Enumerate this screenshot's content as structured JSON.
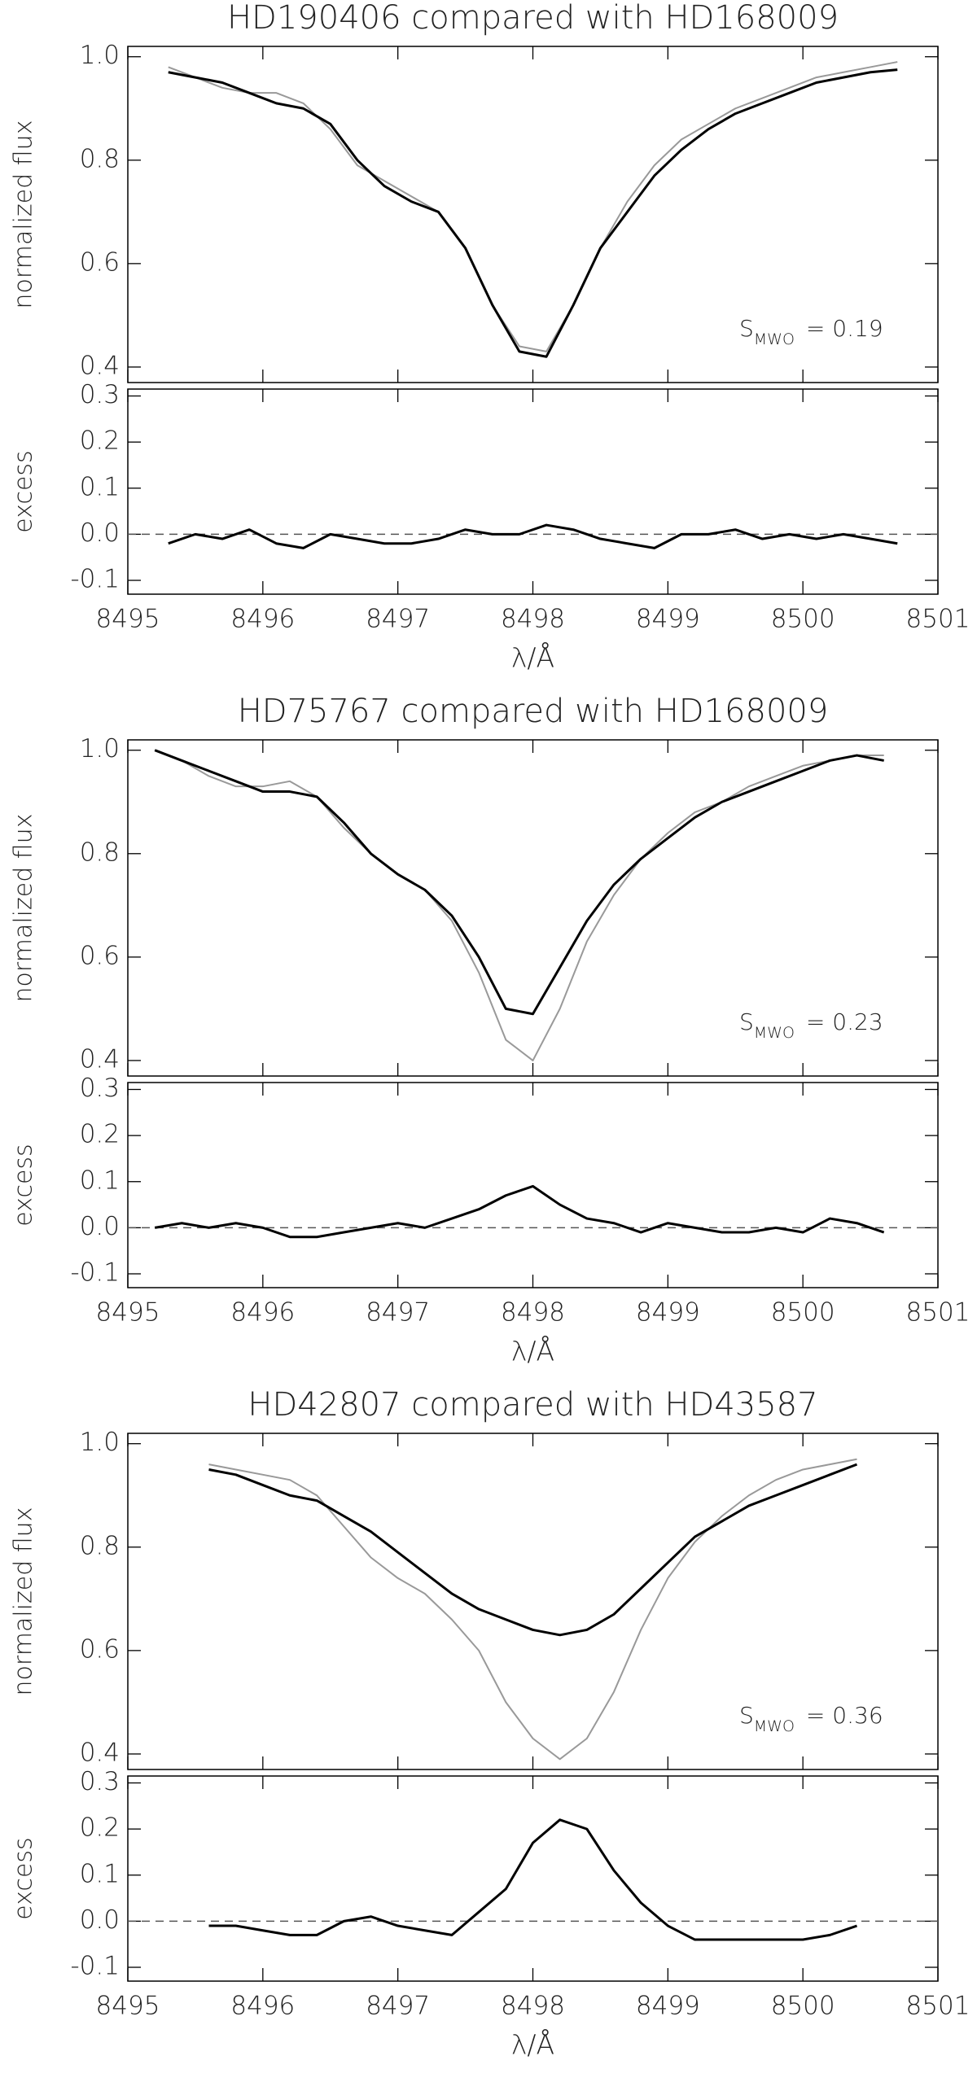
{
  "chart_data": [
    {
      "type": "line",
      "title": "HD190406 compared with HD168009",
      "ylabel": "normalized flux",
      "annotation": {
        "symbol": "S",
        "subscript": "MWO",
        "text": "= 0.19"
      },
      "x": [
        8495.3,
        8495.5,
        8495.7,
        8495.9,
        8496.1,
        8496.3,
        8496.5,
        8496.7,
        8496.9,
        8497.1,
        8497.3,
        8497.5,
        8497.7,
        8497.9,
        8498.1,
        8498.3,
        8498.5,
        8498.7,
        8498.9,
        8499.1,
        8499.3,
        8499.5,
        8499.7,
        8499.9,
        8500.1,
        8500.3,
        8500.5,
        8500.7
      ],
      "series": [
        {
          "color": "#000000",
          "values": [
            0.97,
            0.96,
            0.95,
            0.93,
            0.91,
            0.9,
            0.87,
            0.8,
            0.75,
            0.72,
            0.7,
            0.63,
            0.52,
            0.43,
            0.42,
            0.52,
            0.63,
            0.7,
            0.77,
            0.82,
            0.86,
            0.89,
            0.91,
            0.93,
            0.95,
            0.96,
            0.97,
            0.975
          ]
        },
        {
          "color": "#999999",
          "values": [
            0.98,
            0.96,
            0.94,
            0.93,
            0.93,
            0.91,
            0.86,
            0.79,
            0.76,
            0.73,
            0.7,
            0.63,
            0.52,
            0.44,
            0.43,
            0.52,
            0.63,
            0.72,
            0.79,
            0.84,
            0.87,
            0.9,
            0.92,
            0.94,
            0.96,
            0.97,
            0.98,
            0.99
          ]
        }
      ],
      "xlim": [
        8495,
        8501
      ],
      "xticks": [
        8495,
        8496,
        8497,
        8498,
        8499,
        8500,
        8501
      ],
      "ylim": [
        0.37,
        1.02
      ],
      "yticks": [
        0.4,
        0.6,
        0.8,
        {
          "value": 1,
          "label": "1.0"
        }
      ]
    },
    {
      "type": "line",
      "ylabel": "excess",
      "xlabel": "λ/Å",
      "hline": 0,
      "x": [
        8495.3,
        8495.5,
        8495.7,
        8495.9,
        8496.1,
        8496.3,
        8496.5,
        8496.7,
        8496.9,
        8497.1,
        8497.3,
        8497.5,
        8497.7,
        8497.9,
        8498.1,
        8498.3,
        8498.5,
        8498.7,
        8498.9,
        8499.1,
        8499.3,
        8499.5,
        8499.7,
        8499.9,
        8500.1,
        8500.3,
        8500.5,
        8500.7
      ],
      "series": [
        {
          "color": "#000000",
          "values": [
            -0.02,
            0.0,
            -0.01,
            0.01,
            -0.02,
            -0.03,
            0.0,
            -0.01,
            -0.02,
            -0.02,
            -0.01,
            0.01,
            0.0,
            0.0,
            0.02,
            0.01,
            -0.01,
            -0.02,
            -0.03,
            0.0,
            0.0,
            0.01,
            -0.01,
            0.0,
            -0.01,
            0.0,
            -0.01,
            -0.02
          ]
        }
      ],
      "xlim": [
        8495,
        8501
      ],
      "xticks": [
        8495,
        8496,
        8497,
        8498,
        8499,
        8500,
        8501
      ],
      "ylim": [
        -0.13,
        0.315
      ],
      "yticks": [
        -0.1,
        {
          "value": 0,
          "label": "0.0"
        },
        0.1,
        0.2,
        0.3
      ]
    },
    {
      "type": "line",
      "title": "HD75767 compared with HD168009",
      "ylabel": "normalized flux",
      "annotation": {
        "symbol": "S",
        "subscript": "MWO",
        "text": "= 0.23"
      },
      "x": [
        8495.2,
        8495.4,
        8495.6,
        8495.8,
        8496.0,
        8496.2,
        8496.4,
        8496.6,
        8496.8,
        8497.0,
        8497.2,
        8497.4,
        8497.6,
        8497.8,
        8498.0,
        8498.2,
        8498.4,
        8498.6,
        8498.8,
        8499.0,
        8499.2,
        8499.4,
        8499.6,
        8499.8,
        8500.0,
        8500.2,
        8500.4,
        8500.6
      ],
      "series": [
        {
          "color": "#000000",
          "values": [
            1.0,
            0.98,
            0.96,
            0.94,
            0.92,
            0.92,
            0.91,
            0.86,
            0.8,
            0.76,
            0.73,
            0.68,
            0.6,
            0.5,
            0.49,
            0.58,
            0.67,
            0.74,
            0.79,
            0.83,
            0.87,
            0.9,
            0.92,
            0.94,
            0.96,
            0.98,
            0.99,
            0.98
          ]
        },
        {
          "color": "#999999",
          "values": [
            1.0,
            0.98,
            0.95,
            0.93,
            0.93,
            0.94,
            0.91,
            0.85,
            0.8,
            0.76,
            0.73,
            0.67,
            0.57,
            0.44,
            0.4,
            0.5,
            0.63,
            0.72,
            0.79,
            0.84,
            0.88,
            0.9,
            0.93,
            0.95,
            0.97,
            0.98,
            0.99,
            0.99
          ]
        }
      ],
      "xlim": [
        8495,
        8501
      ],
      "xticks": [
        8495,
        8496,
        8497,
        8498,
        8499,
        8500,
        8501
      ],
      "ylim": [
        0.37,
        1.02
      ],
      "yticks": [
        0.4,
        0.6,
        0.8,
        {
          "value": 1,
          "label": "1.0"
        }
      ]
    },
    {
      "type": "line",
      "ylabel": "excess",
      "xlabel": "λ/Å",
      "hline": 0,
      "x": [
        8495.2,
        8495.4,
        8495.6,
        8495.8,
        8496.0,
        8496.2,
        8496.4,
        8496.6,
        8496.8,
        8497.0,
        8497.2,
        8497.4,
        8497.6,
        8497.8,
        8498.0,
        8498.2,
        8498.4,
        8498.6,
        8498.8,
        8499.0,
        8499.2,
        8499.4,
        8499.6,
        8499.8,
        8500.0,
        8500.2,
        8500.4,
        8500.6
      ],
      "series": [
        {
          "color": "#000000",
          "values": [
            0.0,
            0.01,
            0.0,
            0.01,
            0.0,
            -0.02,
            -0.02,
            -0.01,
            0.0,
            0.01,
            0.0,
            0.02,
            0.04,
            0.07,
            0.09,
            0.05,
            0.02,
            0.01,
            -0.01,
            0.01,
            0.0,
            -0.01,
            -0.01,
            0.0,
            -0.01,
            0.02,
            0.01,
            -0.01
          ]
        }
      ],
      "xlim": [
        8495,
        8501
      ],
      "xticks": [
        8495,
        8496,
        8497,
        8498,
        8499,
        8500,
        8501
      ],
      "ylim": [
        -0.13,
        0.315
      ],
      "yticks": [
        -0.1,
        {
          "value": 0,
          "label": "0.0"
        },
        0.1,
        0.2,
        0.3
      ]
    },
    {
      "type": "line",
      "title": "HD42807 compared with HD43587",
      "ylabel": "normalized flux",
      "annotation": {
        "symbol": "S",
        "subscript": "MWO",
        "text": "= 0.36"
      },
      "x": [
        8495.6,
        8495.8,
        8496.0,
        8496.2,
        8496.4,
        8496.6,
        8496.8,
        8497.0,
        8497.2,
        8497.4,
        8497.6,
        8497.8,
        8498.0,
        8498.2,
        8498.4,
        8498.6,
        8498.8,
        8499.0,
        8499.2,
        8499.4,
        8499.6,
        8499.8,
        8500.0,
        8500.2,
        8500.4
      ],
      "series": [
        {
          "color": "#000000",
          "values": [
            0.95,
            0.94,
            0.92,
            0.9,
            0.89,
            0.86,
            0.83,
            0.79,
            0.75,
            0.71,
            0.68,
            0.66,
            0.64,
            0.63,
            0.64,
            0.67,
            0.72,
            0.77,
            0.82,
            0.85,
            0.88,
            0.9,
            0.92,
            0.94,
            0.96
          ]
        },
        {
          "color": "#999999",
          "values": [
            0.96,
            0.95,
            0.94,
            0.93,
            0.9,
            0.84,
            0.78,
            0.74,
            0.71,
            0.66,
            0.6,
            0.5,
            0.43,
            0.39,
            0.43,
            0.52,
            0.64,
            0.74,
            0.81,
            0.86,
            0.9,
            0.93,
            0.95,
            0.96,
            0.97
          ]
        }
      ],
      "xlim": [
        8495,
        8501
      ],
      "xticks": [
        8495,
        8496,
        8497,
        8498,
        8499,
        8500,
        8501
      ],
      "ylim": [
        0.37,
        1.02
      ],
      "yticks": [
        0.4,
        0.6,
        0.8,
        {
          "value": 1,
          "label": "1.0"
        }
      ]
    },
    {
      "type": "line",
      "ylabel": "excess",
      "xlabel": "λ/Å",
      "hline": 0,
      "x": [
        8495.6,
        8495.8,
        8496.0,
        8496.2,
        8496.4,
        8496.6,
        8496.8,
        8497.0,
        8497.2,
        8497.4,
        8497.6,
        8497.8,
        8498.0,
        8498.2,
        8498.4,
        8498.6,
        8498.8,
        8499.0,
        8499.2,
        8499.4,
        8499.6,
        8499.8,
        8500.0,
        8500.2,
        8500.4
      ],
      "series": [
        {
          "color": "#000000",
          "values": [
            -0.01,
            -0.01,
            -0.02,
            -0.03,
            -0.03,
            0.0,
            0.01,
            -0.01,
            -0.02,
            -0.03,
            0.02,
            0.07,
            0.17,
            0.22,
            0.2,
            0.11,
            0.04,
            -0.01,
            -0.04,
            -0.04,
            -0.04,
            -0.04,
            -0.04,
            -0.03,
            -0.01
          ]
        }
      ],
      "xlim": [
        8495,
        8501
      ],
      "xticks": [
        8495,
        8496,
        8497,
        8498,
        8499,
        8500,
        8501
      ],
      "ylim": [
        -0.13,
        0.315
      ],
      "yticks": [
        -0.1,
        {
          "value": 0,
          "label": "0.0"
        },
        0.1,
        0.2,
        0.3
      ]
    }
  ]
}
